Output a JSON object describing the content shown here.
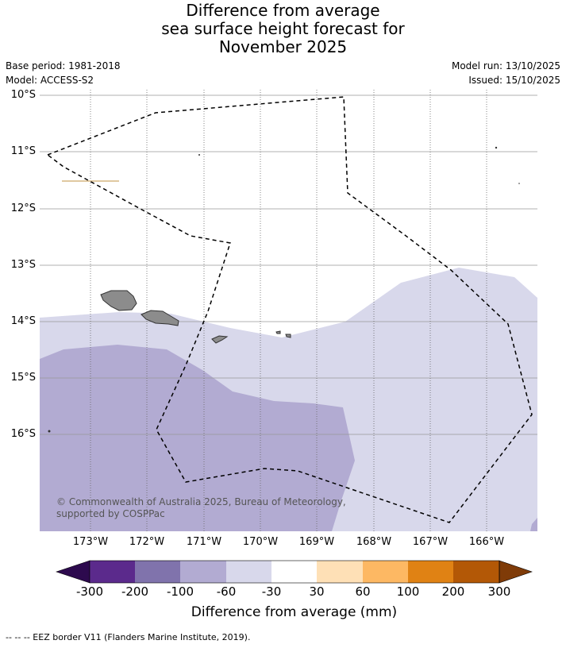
{
  "title_lines": [
    "Difference from average",
    "sea surface height forecast for",
    "November 2025"
  ],
  "base_period": "Base period: 1981-2018",
  "model": "Model: ACCESS-S2",
  "model_run": "Model run: 13/10/2025",
  "issued": "Issued: 15/10/2025",
  "latitude_labels": [
    "10°S",
    "11°S",
    "12°S",
    "13°S",
    "14°S",
    "15°S",
    "16°S"
  ],
  "longitude_labels": [
    "173°W",
    "172°W",
    "171°W",
    "170°W",
    "169°W",
    "168°W",
    "167°W",
    "166°W"
  ],
  "copyright": "© Commonwealth of Australia 2025, Bureau of Meteorology, supported by COSPPac",
  "colorbar": {
    "ticks": [
      "-300",
      "-200",
      "-100",
      "-60",
      "-30",
      "30",
      "60",
      "100",
      "200",
      "300"
    ],
    "colors": [
      "#2d0a4e",
      "#5b2a8c",
      "#8073ac",
      "#b2abd2",
      "#d8d8eb",
      "#ffffff",
      "#fee0b6",
      "#fdb863",
      "#e08214",
      "#b35806",
      "#7f3b08"
    ],
    "title": "Difference from average (mm)"
  },
  "legend_footnote": "-- -- -- EEZ border V11 (Flanders Marine Institute, 2019).",
  "map_colors": {
    "band_minus_60_to_minus_30": "#d8d8eb",
    "band_minus_100_to_minus_60": "#b2abd2",
    "land": "#8c8c8c",
    "grid": "#888888"
  }
}
